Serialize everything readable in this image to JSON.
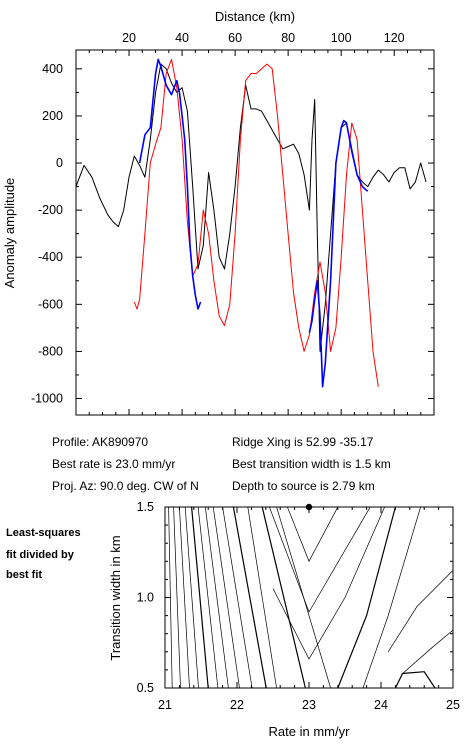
{
  "chart_data": [
    {
      "type": "line",
      "xlabel": "Distance (km)",
      "ylabel": "Anomaly amplitude",
      "xlim": [
        0,
        135
      ],
      "ylim": [
        -1070,
        480
      ],
      "x_ticks": [
        20,
        40,
        60,
        80,
        100,
        120
      ],
      "y_ticks": [
        400,
        200,
        0,
        -200,
        -400,
        -600,
        -800,
        -1000
      ],
      "x_tick_labels": [
        "20",
        "40",
        "60",
        "80",
        "100",
        "120"
      ],
      "y_tick_labels": [
        "400",
        "200",
        "0",
        "-200",
        "-400",
        "-600",
        "-800",
        "-1000"
      ],
      "x_axis_position": "top",
      "grid": false,
      "series": [
        {
          "color": "#000000",
          "x": [
            0,
            3,
            6,
            9,
            12,
            14,
            16,
            18,
            20,
            22,
            24,
            26,
            28,
            30,
            32,
            34,
            36,
            38,
            40,
            42,
            44,
            46,
            48,
            50,
            52,
            54,
            56,
            58,
            60,
            62,
            64,
            66,
            68,
            70,
            72,
            74,
            76,
            78,
            80,
            82,
            84,
            86,
            88,
            89,
            90,
            91,
            92,
            94,
            96,
            98,
            100,
            102,
            104,
            106,
            108,
            110,
            112,
            114,
            116,
            118,
            120,
            122,
            124,
            126,
            128,
            130,
            132
          ],
          "y": [
            -100,
            -10,
            -60,
            -150,
            -220,
            -250,
            -270,
            -200,
            -60,
            30,
            -10,
            -60,
            100,
            300,
            420,
            400,
            340,
            300,
            320,
            220,
            -100,
            -450,
            -350,
            -40,
            -200,
            -400,
            -450,
            -300,
            -100,
            150,
            330,
            230,
            230,
            220,
            180,
            140,
            100,
            60,
            70,
            80,
            40,
            -50,
            -200,
            100,
            270,
            -300,
            -800,
            -600,
            -300,
            0,
            150,
            170,
            60,
            -50,
            -80,
            -100,
            -60,
            -30,
            -50,
            -80,
            -40,
            -20,
            -20,
            -110,
            -80,
            0,
            -80
          ]
        },
        {
          "color": "#ff0000",
          "x": [
            22,
            23,
            24,
            26,
            28,
            30,
            32,
            34,
            36,
            38,
            40,
            42,
            44,
            46,
            48,
            50,
            52,
            54,
            56,
            58,
            60,
            62,
            64,
            66,
            68,
            70,
            72,
            74,
            76,
            78,
            80,
            82,
            84,
            86,
            88,
            90,
            92,
            94,
            96,
            98,
            100,
            102,
            104,
            106,
            108,
            110,
            112,
            114
          ],
          "y": [
            -590,
            -620,
            -580,
            -300,
            0,
            80,
            150,
            380,
            440,
            320,
            100,
            -250,
            -480,
            -430,
            -200,
            -300,
            -500,
            -650,
            -690,
            -600,
            -300,
            100,
            350,
            380,
            380,
            400,
            420,
            400,
            200,
            -50,
            -300,
            -550,
            -700,
            -800,
            -730,
            -550,
            -420,
            -550,
            -800,
            -700,
            -400,
            -50,
            170,
            100,
            -200,
            -500,
            -800,
            -950
          ]
        },
        {
          "color": "#0000ff",
          "x": [
            24,
            26,
            28,
            30,
            31,
            32,
            34,
            36,
            38,
            39,
            40,
            41,
            42,
            43,
            44,
            45,
            46,
            47,
            88,
            89,
            90,
            91,
            92,
            93,
            94,
            96,
            98,
            100,
            101,
            102,
            104,
            106,
            108,
            110
          ],
          "y": [
            0,
            120,
            150,
            380,
            440,
            410,
            330,
            290,
            350,
            300,
            200,
            100,
            -100,
            -350,
            -480,
            -560,
            -620,
            -590,
            -720,
            -670,
            -580,
            -500,
            -650,
            -950,
            -850,
            -500,
            0,
            150,
            180,
            170,
            50,
            -50,
            -100,
            -120
          ]
        }
      ]
    },
    {
      "type": "contour",
      "xlabel": "Rate in mm/yr",
      "ylabel": "Transition width in km",
      "xlim": [
        21,
        25
      ],
      "ylim": [
        0.5,
        1.5
      ],
      "x_ticks": [
        21,
        22,
        23,
        24,
        25
      ],
      "y_ticks": [
        0.5,
        1.0,
        1.5
      ],
      "x_tick_labels": [
        "21",
        "22",
        "23",
        "24",
        "25"
      ],
      "y_tick_labels": [
        "0.5",
        "1.0",
        "1.5"
      ],
      "best_fit_marker": {
        "rate": 23.0,
        "width": 1.5
      },
      "grid": false
    }
  ],
  "info": {
    "profile": "Profile: AK890970",
    "best_rate": "Best rate is 23.0 mm/yr",
    "proj_az": "Proj. Az: 90.0 deg. CW of N",
    "ridge_xing": "Ridge Xing is 52.99 -35.17",
    "best_width": "Best transition width is 1.5 km",
    "depth": "Depth to source is   2.79 km"
  },
  "side_note": [
    "Least-squares",
    "fit divided by",
    "best fit"
  ]
}
